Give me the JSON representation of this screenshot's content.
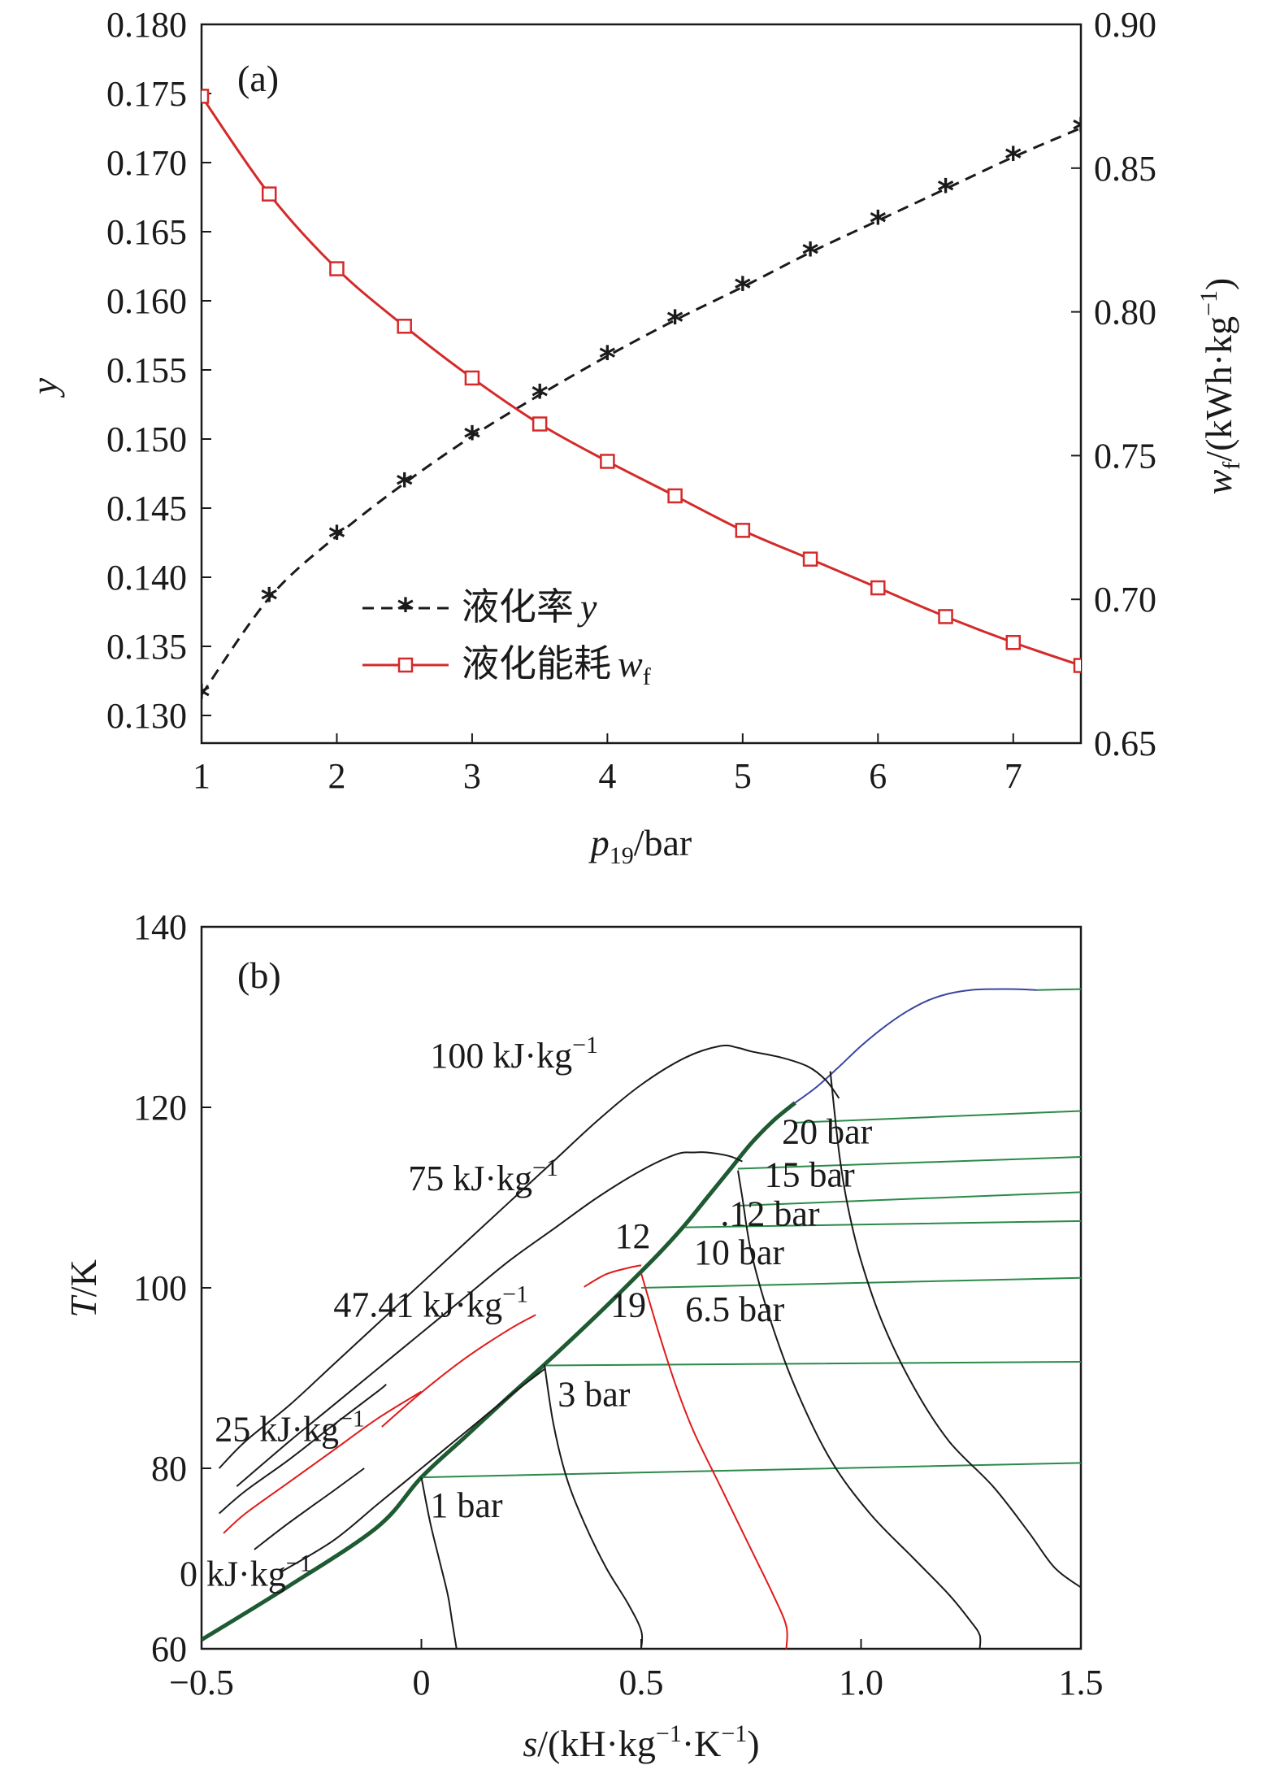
{
  "chart_data": [
    {
      "type": "line",
      "panel_label": "(a)",
      "xlabel_italic": "p",
      "xlabel_sub": "19",
      "xlabel_rest": "/bar",
      "ylabel": "y",
      "y2label_italic": "w",
      "y2label_sub": "f",
      "y2label_rest": "/(kWh·kg",
      "y2label_sup": "−1",
      "y2label_close": ")",
      "xlim": [
        1,
        7.5
      ],
      "ylim": [
        0.128,
        0.18
      ],
      "y2lim": [
        0.65,
        0.9
      ],
      "xticks": [
        "1",
        "2",
        "3",
        "4",
        "5",
        "6",
        "7"
      ],
      "yticks": [
        "0.130",
        "0.135",
        "0.140",
        "0.145",
        "0.150",
        "0.155",
        "0.160",
        "0.165",
        "0.170",
        "0.175",
        "0.180"
      ],
      "y2ticks": [
        "0.65",
        "0.70",
        "0.75",
        "0.80",
        "0.85",
        "0.90"
      ],
      "legend_position": "lower-left",
      "series": [
        {
          "name": "液化率",
          "name_symbol": "y",
          "axis": "left",
          "color": "#1a1a1a",
          "style": "dashed",
          "marker": "asterisk",
          "x": [
            1,
            1.5,
            2,
            2.5,
            3,
            3.5,
            4,
            4.5,
            5,
            5.5,
            6,
            6.5,
            7,
            7.5
          ],
          "values": [
            0.1315,
            0.1385,
            0.143,
            0.1468,
            0.1502,
            0.1532,
            0.156,
            0.1586,
            0.161,
            0.1635,
            0.1658,
            0.1681,
            0.1704,
            0.1725
          ]
        },
        {
          "name": "液化能耗",
          "name_symbol": "w",
          "name_sub": "f",
          "axis": "right",
          "color": "#d42a2a",
          "style": "solid",
          "marker": "square-open",
          "x": [
            1,
            1.5,
            2,
            2.5,
            3,
            3.5,
            4,
            4.5,
            5,
            5.5,
            6,
            6.5,
            7,
            7.5
          ],
          "values": [
            0.875,
            0.841,
            0.815,
            0.795,
            0.777,
            0.761,
            0.748,
            0.736,
            0.724,
            0.714,
            0.704,
            0.694,
            0.685,
            0.677
          ]
        }
      ]
    },
    {
      "type": "line",
      "panel_label": "(b)",
      "xlabel_italic": "s",
      "xlabel_rest": "/(kH·kg",
      "xlabel_sup1": "−1",
      "xlabel_mid": "·K",
      "xlabel_sup2": "−1",
      "xlabel_close": ")",
      "ylabel_italic": "T",
      "ylabel_rest": "/K",
      "xlim": [
        -0.5,
        1.5
      ],
      "ylim": [
        60,
        140
      ],
      "xticks": [
        "−0.5",
        "0",
        "0.5",
        "1.0",
        "1.5"
      ],
      "xtick_values": [
        -0.5,
        0,
        0.5,
        1.0,
        1.5
      ],
      "yticks": [
        "60",
        "80",
        "100",
        "120",
        "140"
      ],
      "ytick_values": [
        60,
        80,
        100,
        120,
        140
      ],
      "annotations": [
        {
          "text": "100 kJ·kg",
          "sup": "−1",
          "x": 0.02,
          "y": 124.4,
          "color": "#1a1a1a"
        },
        {
          "text": "75 kJ·kg",
          "sup": "−1",
          "x": -0.03,
          "y": 110.8,
          "color": "#1a1a1a"
        },
        {
          "text": "47.41 kJ·kg",
          "sup": "−1",
          "x": -0.2,
          "y": 96.8,
          "color": "#1a1a1a"
        },
        {
          "text": "25 kJ·kg",
          "sup": "−1",
          "x": -0.47,
          "y": 83.0,
          "color": "#1a1a1a"
        },
        {
          "text": "0 kJ·kg",
          "sup": "−1",
          "x": -0.55,
          "y": 67.0,
          "color": "#1a1a1a"
        },
        {
          "text": "20 bar",
          "x": 0.82,
          "y": 116.0,
          "color": "#1a1a1a"
        },
        {
          "text": "15 bar",
          "x": 0.78,
          "y": 111.2,
          "color": "#1a1a1a"
        },
        {
          "text": ".12 bar",
          "x": 0.68,
          "y": 106.9,
          "color": "#1a1a1a"
        },
        {
          "text": "10 bar",
          "x": 0.62,
          "y": 102.6,
          "color": "#1a1a1a"
        },
        {
          "text": "6.5 bar",
          "x": 0.6,
          "y": 96.3,
          "color": "#1a1a1a"
        },
        {
          "text": "3 bar",
          "x": 0.31,
          "y": 86.9,
          "color": "#1a1a1a"
        },
        {
          "text": "1 bar",
          "x": 0.02,
          "y": 74.6,
          "color": "#1a1a1a"
        },
        {
          "text": "12",
          "x": 0.44,
          "y": 104.4,
          "color": "#e01a1a"
        },
        {
          "text": "19",
          "x": 0.43,
          "y": 96.8,
          "color": "#e01a1a"
        }
      ],
      "series": [
        {
          "color": "#1e5a32",
          "width": 5,
          "x": [
            -0.5,
            -0.3,
            -0.1,
            0,
            0.1,
            0.2,
            0.28,
            0.4,
            0.5,
            0.55,
            0.6,
            0.65,
            0.7,
            0.75,
            0.8,
            0.85
          ],
          "y": [
            61,
            67,
            73.5,
            79,
            83.5,
            88,
            91.5,
            97,
            101.8,
            104.3,
            107,
            110,
            113,
            116,
            118.5,
            120.5
          ]
        },
        {
          "color": "#3a45a0",
          "width": 2,
          "x": [
            0.85,
            0.9,
            0.95,
            1.0,
            1.05,
            1.1,
            1.15,
            1.2,
            1.25,
            1.3,
            1.35,
            1.4
          ],
          "y": [
            120.5,
            122.3,
            124.5,
            126.8,
            128.8,
            130.5,
            131.8,
            132.6,
            133,
            133.1,
            133.1,
            133
          ]
        },
        {
          "color": "#2a8a48",
          "width": 2,
          "x": [
            1.4,
            1.5
          ],
          "y": [
            133,
            133.1
          ]
        },
        {
          "color": "#2a8a48",
          "width": 2,
          "x": [
            0.0,
            1.5
          ],
          "y": [
            79,
            80.6
          ]
        },
        {
          "color": "#2a8a48",
          "width": 2,
          "x": [
            0.28,
            1.5
          ],
          "y": [
            91.4,
            91.8
          ]
        },
        {
          "color": "#2a8a48",
          "width": 2,
          "x": [
            0.5,
            1.5
          ],
          "y": [
            100,
            101.1
          ]
        },
        {
          "color": "#2a8a48",
          "width": 2,
          "x": [
            0.6,
            1.5
          ],
          "y": [
            106.7,
            107.4
          ]
        },
        {
          "color": "#2a8a48",
          "width": 2,
          "x": [
            0.72,
            1.5
          ],
          "y": [
            109.1,
            110.6
          ]
        },
        {
          "color": "#2a8a48",
          "width": 2,
          "x": [
            0.72,
            1.5
          ],
          "y": [
            113.2,
            114.5
          ]
        },
        {
          "color": "#2a8a48",
          "width": 2,
          "x": [
            0.85,
            1.5
          ],
          "y": [
            118.3,
            119.6
          ]
        },
        {
          "color": "#1a1a1a",
          "width": 2,
          "x": [
            0.0,
            0.02,
            0.04,
            0.06,
            0.07,
            0.08
          ],
          "y": [
            79,
            74,
            70,
            66,
            63,
            60
          ]
        },
        {
          "color": "#1a1a1a",
          "width": 2,
          "x": [
            0.28,
            0.3,
            0.33,
            0.37,
            0.42,
            0.47,
            0.5,
            0.5
          ],
          "y": [
            91.5,
            85,
            79,
            74,
            69,
            65,
            62,
            60
          ]
        },
        {
          "color": "#e01a1a",
          "width": 2,
          "x": [
            0.5,
            0.54,
            0.58,
            0.62,
            0.68,
            0.74,
            0.8,
            0.83,
            0.83
          ],
          "y": [
            101.6,
            95,
            89,
            84,
            78,
            72,
            66,
            62.5,
            60
          ]
        },
        {
          "color": "#1a1a1a",
          "width": 2,
          "x": [
            0.72,
            0.73,
            0.75,
            0.79,
            0.85,
            0.93,
            1.02,
            1.12,
            1.2,
            1.25,
            1.27,
            1.27
          ],
          "y": [
            113,
            110,
            104,
            97,
            89,
            81,
            75,
            70,
            66,
            63,
            61.5,
            60
          ]
        },
        {
          "color": "#1a1a1a",
          "width": 2,
          "x": [
            0.93,
            0.95,
            0.97,
            1.0,
            1.05,
            1.12,
            1.2,
            1.3,
            1.38,
            1.44,
            1.5
          ],
          "y": [
            124,
            115,
            109,
            103,
            96,
            89,
            83,
            78,
            73,
            69,
            66.8
          ]
        },
        {
          "color": "#1a1a1a",
          "width": 2,
          "x": [
            -0.46,
            -0.4,
            -0.3,
            -0.2,
            -0.1,
            0.0,
            0.1,
            0.2,
            0.3,
            0.4,
            0.5,
            0.6,
            0.68,
            0.72,
            0.75,
            0.82,
            0.88,
            0.92,
            0.95
          ],
          "y": [
            80,
            83,
            87,
            91.5,
            96,
            100.5,
            105,
            109.5,
            114,
            118.5,
            122.5,
            125.5,
            126.8,
            126.6,
            126.2,
            125.5,
            124.5,
            123,
            121
          ]
        },
        {
          "color": "#1a1a1a",
          "width": 2,
          "x": [
            -0.42,
            -0.3,
            -0.2,
            -0.1,
            0.0,
            0.1,
            0.2,
            0.3,
            0.4,
            0.5,
            0.58,
            0.62,
            0.65,
            0.7,
            0.73
          ],
          "y": [
            78,
            83,
            87,
            91,
            95,
            99,
            103,
            106.5,
            110,
            113,
            114.8,
            115,
            115,
            114.6,
            114
          ]
        },
        {
          "color": "#1a1a1a",
          "width": 2,
          "x": [
            -0.46,
            -0.4,
            -0.3,
            -0.2,
            -0.1,
            -0.08
          ],
          "y": [
            75,
            77.5,
            81,
            84.8,
            88.5,
            89.3
          ]
        },
        {
          "color": "#e01a1a",
          "width": 2,
          "x": [
            -0.45,
            -0.4,
            -0.3,
            -0.2,
            -0.1,
            0
          ],
          "y": [
            72.8,
            75,
            78.5,
            82,
            85.5,
            88.5
          ]
        },
        {
          "color": "#e01a1a",
          "width": 2,
          "x": [
            -0.09,
            0.0,
            0.1,
            0.2,
            0.26
          ],
          "y": [
            84.6,
            88.4,
            92.2,
            95.4,
            97
          ]
        },
        {
          "color": "#e01a1a",
          "width": 2,
          "x": [
            0.37,
            0.42,
            0.47,
            0.5
          ],
          "y": [
            100.1,
            101.5,
            102.2,
            102.5
          ]
        },
        {
          "color": "#1a1a1a",
          "width": 2,
          "x": [
            -0.38,
            -0.3,
            -0.2,
            -0.13
          ],
          "y": [
            71,
            74,
            77.5,
            80
          ]
        },
        {
          "color": "#1a1a1a",
          "width": 2,
          "x": [
            -0.32,
            -0.2,
            -0.1,
            0.0,
            0.1,
            0.2,
            0.28
          ],
          "y": [
            68.5,
            72,
            76,
            80,
            84,
            88,
            91
          ]
        }
      ]
    }
  ]
}
